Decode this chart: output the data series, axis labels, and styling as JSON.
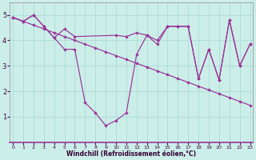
{
  "xlabel": "Windchill (Refroidissement éolien,°C)",
  "bg_color": "#cceee8",
  "grid_color": "#aaddd8",
  "line_color": "#993399",
  "xlim": [
    0,
    23
  ],
  "ylim": [
    0,
    5.5
  ],
  "xticks": [
    0,
    1,
    2,
    3,
    4,
    5,
    6,
    7,
    8,
    9,
    10,
    11,
    12,
    13,
    14,
    15,
    16,
    17,
    18,
    19,
    20,
    21,
    22,
    23
  ],
  "yticks": [
    1,
    2,
    3,
    4,
    5
  ],
  "line1_x": [
    0,
    1,
    2,
    3,
    4,
    5,
    6,
    7,
    8,
    9,
    10,
    11,
    12,
    13,
    14,
    15,
    16,
    17,
    18,
    19,
    20,
    21,
    22,
    23
  ],
  "line1_y": [
    4.9,
    4.75,
    4.6,
    4.45,
    4.3,
    4.15,
    4.0,
    3.85,
    3.7,
    3.55,
    3.4,
    3.25,
    3.1,
    2.95,
    2.8,
    2.65,
    2.5,
    2.35,
    2.2,
    2.05,
    1.9,
    1.75,
    1.6,
    1.45
  ],
  "line2_x": [
    0,
    1,
    2,
    3,
    4,
    5,
    6,
    7,
    8,
    9,
    10,
    11,
    12,
    13,
    14,
    15,
    16,
    17,
    18,
    19,
    20,
    21,
    22,
    23
  ],
  "line2_y": [
    4.9,
    4.75,
    5.0,
    4.55,
    4.1,
    3.65,
    3.65,
    1.55,
    1.15,
    0.65,
    0.85,
    1.15,
    3.45,
    4.2,
    3.85,
    4.55,
    4.55,
    4.55,
    2.5,
    3.65,
    2.45,
    4.8,
    3.0,
    3.85
  ],
  "line3_x": [
    0,
    1,
    2,
    3,
    4,
    5,
    6,
    10,
    11,
    12,
    13,
    14,
    15,
    16,
    17,
    18,
    19,
    20,
    21,
    22,
    23
  ],
  "line3_y": [
    4.9,
    4.75,
    5.0,
    4.55,
    4.1,
    4.45,
    4.15,
    4.2,
    4.15,
    4.3,
    4.2,
    4.0,
    4.55,
    4.55,
    4.55,
    2.5,
    3.65,
    2.45,
    4.8,
    3.0,
    3.85
  ]
}
